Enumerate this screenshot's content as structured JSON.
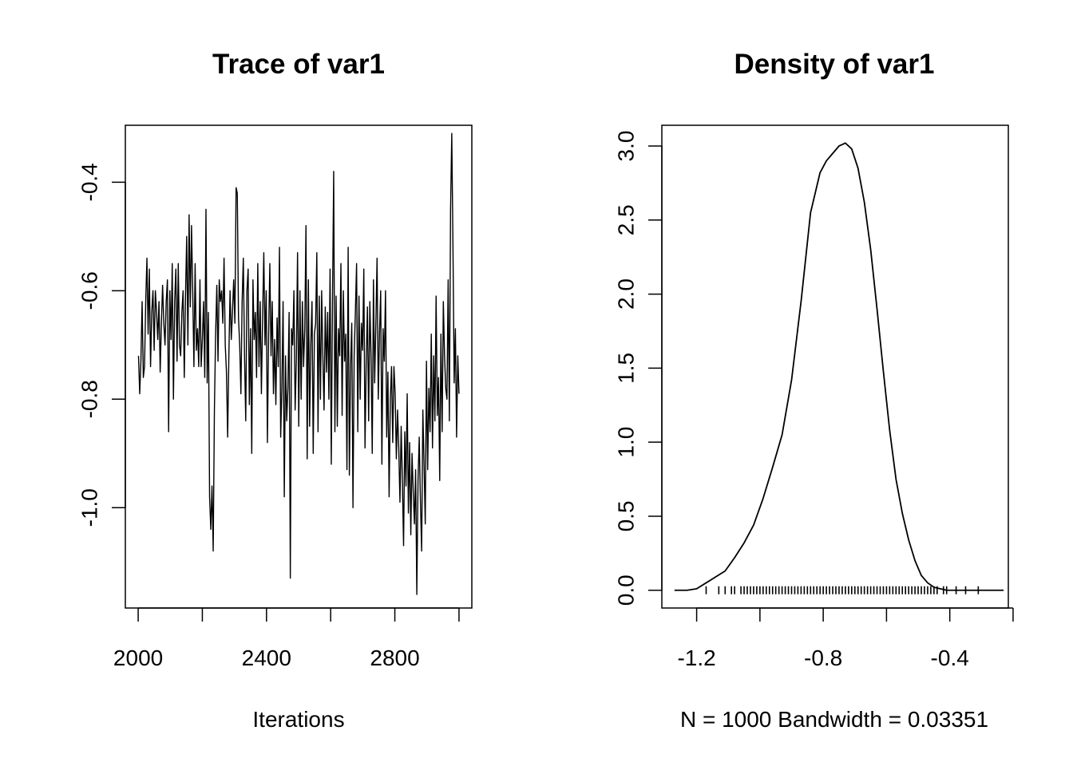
{
  "chart_data": [
    {
      "type": "line",
      "title": "Trace of var1",
      "xlabel": "Iterations",
      "ylabel": "",
      "xlim": [
        1960,
        3040
      ],
      "ylim": [
        -1.185,
        -0.295
      ],
      "x_ticks": [
        2000,
        2200,
        2400,
        2600,
        2800,
        3000
      ],
      "x_tick_labels": [
        "2000",
        "",
        "2400",
        "",
        "2800",
        ""
      ],
      "y_ticks": [
        -1.0,
        -0.8,
        -0.6,
        -0.4
      ],
      "y_tick_labels": [
        "-1.0",
        "-0.8",
        "-0.6",
        "-0.4"
      ],
      "x_start": 2001,
      "x_end": 3000,
      "series": [
        {
          "values": [
            -0.72,
            -0.79,
            -0.73,
            -0.62,
            -0.76,
            -0.74,
            -0.62,
            -0.54,
            -0.68,
            -0.56,
            -0.74,
            -0.64,
            -0.6,
            -0.71,
            -0.6,
            -0.64,
            -0.69,
            -0.62,
            -0.75,
            -0.66,
            -0.59,
            -0.66,
            -0.7,
            -0.62,
            -0.58,
            -0.86,
            -0.6,
            -0.69,
            -0.55,
            -0.8,
            -0.62,
            -0.56,
            -0.73,
            -0.55,
            -0.7,
            -0.72,
            -0.64,
            -0.6,
            -0.76,
            -0.61,
            -0.5,
            -0.7,
            -0.46,
            -0.63,
            -0.48,
            -0.6,
            -0.74,
            -0.55,
            -0.71,
            -0.67,
            -0.74,
            -0.58,
            -0.74,
            -0.69,
            -0.62,
            -0.76,
            -0.45,
            -0.77,
            -0.64,
            -0.98,
            -1.04,
            -0.96,
            -1.08,
            -0.82,
            -0.68,
            -0.59,
            -0.73,
            -0.58,
            -0.62,
            -0.6,
            -0.66,
            -0.54,
            -0.7,
            -0.75,
            -0.87,
            -0.72,
            -0.6,
            -0.69,
            -0.64,
            -0.58,
            -0.66,
            -0.41,
            -0.42,
            -0.65,
            -0.7,
            -0.79,
            -0.62,
            -0.54,
            -0.72,
            -0.84,
            -0.6,
            -0.56,
            -0.81,
            -0.67,
            -0.9,
            -0.58,
            -0.69,
            -0.64,
            -0.76,
            -0.55,
            -0.74,
            -0.62,
            -0.79,
            -0.65,
            -0.53,
            -0.7,
            -0.6,
            -0.88,
            -0.68,
            -0.55,
            -0.72,
            -0.62,
            -0.79,
            -0.69,
            -0.81,
            -0.65,
            -0.74,
            -0.52,
            -0.87,
            -0.78,
            -0.62,
            -0.98,
            -0.72,
            -0.84,
            -0.78,
            -0.64,
            -1.13,
            -0.67,
            -0.7,
            -0.6,
            -0.82,
            -0.73,
            -0.53,
            -0.85,
            -0.6,
            -0.8,
            -0.62,
            -0.74,
            -0.67,
            -0.48,
            -0.91,
            -0.58,
            -0.85,
            -0.7,
            -0.62,
            -0.9,
            -0.68,
            -0.66,
            -0.53,
            -0.86,
            -0.61,
            -0.8,
            -0.6,
            -0.72,
            -0.82,
            -0.63,
            -0.75,
            -0.64,
            -0.8,
            -0.56,
            -0.92,
            -0.62,
            -0.38,
            -0.86,
            -0.61,
            -0.85,
            -0.67,
            -0.72,
            -0.55,
            -0.83,
            -0.6,
            -0.73,
            -0.68,
            -0.93,
            -0.52,
            -0.94,
            -0.74,
            -0.66,
            -1.0,
            -0.72,
            -0.64,
            -0.55,
            -0.86,
            -0.61,
            -0.8,
            -0.66,
            -0.71,
            -0.56,
            -0.89,
            -0.73,
            -0.63,
            -0.84,
            -0.62,
            -0.72,
            -0.9,
            -0.58,
            -0.77,
            -0.66,
            -0.54,
            -0.8,
            -0.68,
            -0.6,
            -0.92,
            -0.67,
            -0.73,
            -0.6,
            -0.87,
            -0.75,
            -0.98,
            -0.8,
            -0.74,
            -0.88,
            -0.74,
            -0.79,
            -0.91,
            -0.82,
            -0.89,
            -0.99,
            -0.85,
            -0.95,
            -1.07,
            -0.86,
            -0.96,
            -0.79,
            -1.01,
            -0.88,
            -1.05,
            -0.9,
            -0.97,
            -1.03,
            -0.93,
            -1.16,
            -0.95,
            -0.87,
            -0.99,
            -1.08,
            -0.82,
            -0.92,
            -1.03,
            -0.73,
            -0.93,
            -0.78,
            -0.86,
            -0.68,
            -0.89,
            -0.72,
            -0.84,
            -0.61,
            -0.83,
            -0.76,
            -0.95,
            -0.68,
            -0.86,
            -0.62,
            -0.72,
            -0.78,
            -0.8,
            -0.58,
            -0.84,
            -0.45,
            -0.31,
            -0.52,
            -0.77,
            -0.67,
            -0.87,
            -0.72,
            -0.79
          ]
        }
      ]
    },
    {
      "type": "line",
      "title": "Density of var1",
      "xlabel": "N = 1000   Bandwidth = 0.03351",
      "ylabel": "",
      "xlim": [
        -1.31,
        -0.215
      ],
      "ylim": [
        -0.12,
        3.14
      ],
      "x_ticks": [
        -1.2,
        -1.0,
        -0.8,
        -0.6,
        -0.4,
        -0.2
      ],
      "x_tick_labels": [
        "-1.2",
        "",
        "-0.8",
        "",
        "-0.4",
        ""
      ],
      "y_ticks": [
        0.0,
        0.5,
        1.0,
        1.5,
        2.0,
        2.5,
        3.0
      ],
      "y_tick_labels": [
        "0.0",
        "0.5",
        "1.0",
        "1.5",
        "2.0",
        "2.5",
        "3.0"
      ],
      "series": [
        {
          "x": [
            -1.27,
            -1.23,
            -1.2,
            -1.17,
            -1.14,
            -1.11,
            -1.08,
            -1.05,
            -1.02,
            -0.99,
            -0.96,
            -0.93,
            -0.9,
            -0.87,
            -0.84,
            -0.81,
            -0.79,
            -0.77,
            -0.75,
            -0.73,
            -0.71,
            -0.69,
            -0.67,
            -0.65,
            -0.63,
            -0.61,
            -0.59,
            -0.57,
            -0.55,
            -0.53,
            -0.51,
            -0.49,
            -0.47,
            -0.45,
            -0.43,
            -0.41,
            -0.38,
            -0.35,
            -0.32,
            -0.29,
            -0.26,
            -0.23
          ],
          "y": [
            0.0,
            0.0,
            0.01,
            0.05,
            0.09,
            0.13,
            0.22,
            0.32,
            0.44,
            0.62,
            0.83,
            1.05,
            1.42,
            1.95,
            2.55,
            2.82,
            2.9,
            2.95,
            3.0,
            3.02,
            2.98,
            2.85,
            2.62,
            2.3,
            1.9,
            1.48,
            1.08,
            0.75,
            0.52,
            0.34,
            0.2,
            0.1,
            0.05,
            0.02,
            0.01,
            0.0,
            0.0,
            0.0,
            0.0,
            0.0,
            0.0,
            0.0
          ]
        }
      ],
      "rug_x": [
        -1.17,
        -1.13,
        -1.11,
        -1.09,
        -1.08,
        -1.06,
        -1.05,
        -1.04,
        -1.03,
        -1.02,
        -1.01,
        -1.0,
        -0.99,
        -0.98,
        -0.97,
        -0.96,
        -0.95,
        -0.94,
        -0.93,
        -0.92,
        -0.91,
        -0.9,
        -0.89,
        -0.88,
        -0.87,
        -0.86,
        -0.85,
        -0.84,
        -0.83,
        -0.82,
        -0.81,
        -0.8,
        -0.79,
        -0.78,
        -0.77,
        -0.76,
        -0.75,
        -0.74,
        -0.73,
        -0.72,
        -0.71,
        -0.7,
        -0.69,
        -0.68,
        -0.67,
        -0.66,
        -0.65,
        -0.64,
        -0.63,
        -0.62,
        -0.61,
        -0.6,
        -0.59,
        -0.58,
        -0.57,
        -0.56,
        -0.55,
        -0.54,
        -0.53,
        -0.52,
        -0.51,
        -0.5,
        -0.49,
        -0.48,
        -0.47,
        -0.46,
        -0.45,
        -0.44,
        -0.42,
        -0.41,
        -0.38,
        -0.35,
        -0.31
      ]
    }
  ]
}
